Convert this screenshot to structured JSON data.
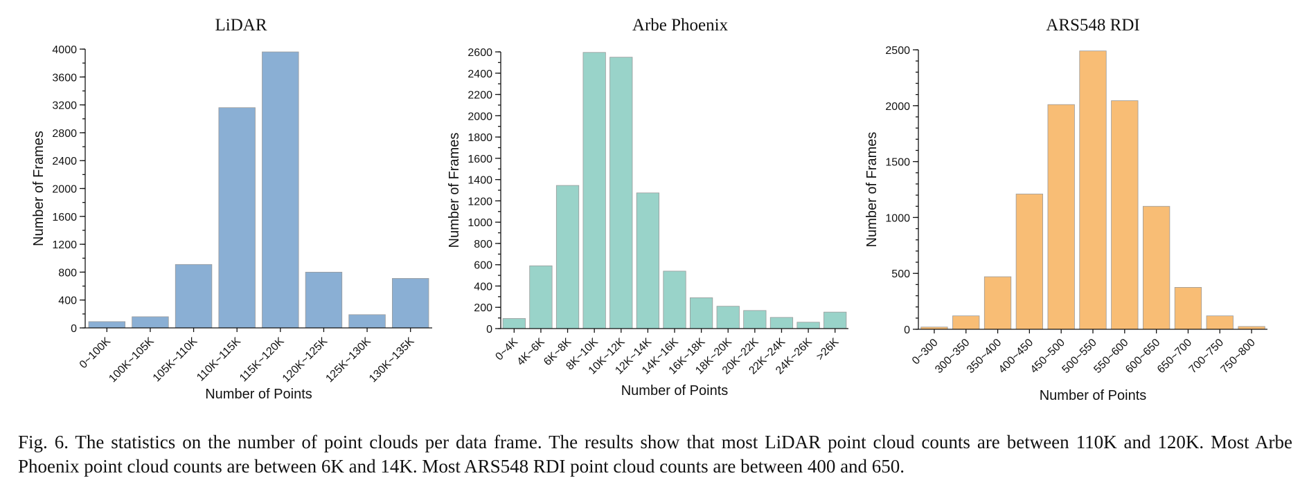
{
  "chart_data": [
    {
      "type": "bar",
      "title": "LiDAR",
      "xlabel": "Number of Points",
      "ylabel": "Number of Frames",
      "categories": [
        "0~100K",
        "100K~105K",
        "105K~110K",
        "110K~115K",
        "115K~120K",
        "120K~125K",
        "125K~130K",
        "130K~135K"
      ],
      "values": [
        90,
        160,
        910,
        3160,
        3960,
        800,
        190,
        710
      ],
      "ylim": [
        0,
        4000
      ],
      "yticks": [
        0,
        400,
        800,
        1200,
        1600,
        2000,
        2400,
        2800,
        3200,
        3600,
        4000
      ],
      "minor_step": 200,
      "color": "#8aafd4",
      "grid": false
    },
    {
      "type": "bar",
      "title": "Arbe Phoenix",
      "xlabel": "Number of Points",
      "ylabel": "Number of Frames",
      "categories": [
        "0~4K",
        "4K~6K",
        "6K~8K",
        "8K~10K",
        "10K~12K",
        "12K~14K",
        "14K~16K",
        "16K~18K",
        "18K~20K",
        "20K~22K",
        "22K~24K",
        "24K~26K",
        ">26K"
      ],
      "values": [
        95,
        590,
        1345,
        2595,
        2550,
        1275,
        540,
        290,
        210,
        170,
        105,
        60,
        155
      ],
      "ylim": [
        0,
        2600
      ],
      "yticks": [
        0,
        200,
        400,
        600,
        800,
        1000,
        1200,
        1400,
        1600,
        1800,
        2000,
        2200,
        2400,
        2600
      ],
      "minor_step": 100,
      "color": "#99d3c9",
      "grid": false
    },
    {
      "type": "bar",
      "title": "ARS548 RDI",
      "xlabel": "Number of Points",
      "ylabel": "Number of Frames",
      "categories": [
        "0~300",
        "300~350",
        "350~400",
        "400~450",
        "450~500",
        "500~550",
        "550~600",
        "600~650",
        "650~700",
        "700~750",
        "750~800"
      ],
      "values": [
        20,
        120,
        470,
        1210,
        2010,
        2490,
        2045,
        1100,
        375,
        120,
        25
      ],
      "ylim": [
        0,
        2500
      ],
      "yticks": [
        0,
        500,
        1000,
        1500,
        2000,
        2500
      ],
      "minor_step": 100,
      "color": "#f8bd75",
      "grid": false
    }
  ],
  "caption": "Fig. 6.  The statistics on the number of point clouds per data frame. The results show that most LiDAR point cloud counts are between 110K and 120K. Most Arbe Phoenix point cloud counts are between 6K and 14K. Most ARS548 RDI point cloud counts are between 400 and 650."
}
